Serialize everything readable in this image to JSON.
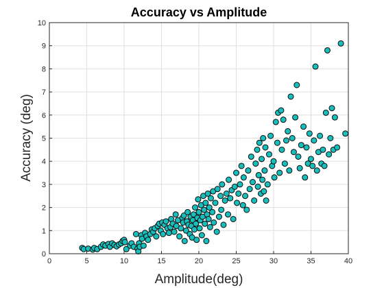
{
  "chart_data": {
    "type": "scatter",
    "title": "Accuracy vs Amplitude",
    "xlabel": "Amplitude(deg)",
    "ylabel": "Accuracy (deg)",
    "xlim": [
      0,
      40
    ],
    "ylim": [
      0,
      10
    ],
    "xticks": [
      "0",
      "5",
      "10",
      "15",
      "20",
      "25",
      "30",
      "35",
      "40"
    ],
    "yticks": [
      "0",
      "1",
      "2",
      "3",
      "4",
      "5",
      "6",
      "7",
      "8",
      "9",
      "10"
    ],
    "grid": true,
    "marker_color": "#17bebb",
    "marker_edge": "#0a0a0a",
    "points": [
      [
        4.4,
        0.25
      ],
      [
        4.6,
        0.2
      ],
      [
        5.2,
        0.22
      ],
      [
        5.8,
        0.18
      ],
      [
        6.0,
        0.25
      ],
      [
        6.4,
        0.2
      ],
      [
        6.9,
        0.3
      ],
      [
        7.2,
        0.4
      ],
      [
        7.5,
        0.35
      ],
      [
        7.9,
        0.42
      ],
      [
        8.1,
        0.3
      ],
      [
        8.4,
        0.45
      ],
      [
        8.7,
        0.38
      ],
      [
        9.0,
        0.32
      ],
      [
        9.3,
        0.4
      ],
      [
        9.6,
        0.45
      ],
      [
        9.8,
        0.55
      ],
      [
        10.0,
        0.6
      ],
      [
        10.1,
        0.5
      ],
      [
        10.3,
        0.2
      ],
      [
        10.8,
        0.35
      ],
      [
        11.0,
        0.45
      ],
      [
        11.3,
        0.3
      ],
      [
        11.6,
        0.85
      ],
      [
        11.8,
        0.22
      ],
      [
        11.9,
        0.1
      ],
      [
        12.0,
        0.45
      ],
      [
        12.1,
        0.3
      ],
      [
        12.3,
        0.8
      ],
      [
        12.4,
        0.65
      ],
      [
        12.6,
        0.35
      ],
      [
        12.8,
        0.9
      ],
      [
        13.0,
        0.75
      ],
      [
        13.2,
        0.6
      ],
      [
        13.5,
        0.85
      ],
      [
        13.7,
        1.05
      ],
      [
        13.9,
        0.95
      ],
      [
        14.1,
        1.1
      ],
      [
        14.3,
        0.75
      ],
      [
        14.5,
        1.2
      ],
      [
        14.7,
        1.3
      ],
      [
        14.9,
        1.0
      ],
      [
        15.1,
        1.35
      ],
      [
        15.2,
        0.85
      ],
      [
        15.4,
        1.25
      ],
      [
        15.6,
        1.4
      ],
      [
        15.8,
        1.1
      ],
      [
        16.0,
        0.9
      ],
      [
        16.2,
        1.15
      ],
      [
        16.3,
        1.5
      ],
      [
        16.5,
        1.3
      ],
      [
        16.7,
        0.95
      ],
      [
        16.9,
        1.7
      ],
      [
        17.0,
        1.2
      ],
      [
        17.2,
        1.45
      ],
      [
        17.4,
        0.75
      ],
      [
        17.6,
        1.1
      ],
      [
        17.8,
        1.55
      ],
      [
        17.9,
        1.35
      ],
      [
        18.0,
        1.65
      ],
      [
        18.1,
        0.55
      ],
      [
        18.3,
        1.0
      ],
      [
        18.4,
        1.4
      ],
      [
        18.5,
        1.8
      ],
      [
        18.6,
        1.25
      ],
      [
        18.8,
        0.85
      ],
      [
        18.9,
        1.6
      ],
      [
        19.0,
        1.2
      ],
      [
        19.1,
        0.7
      ],
      [
        19.2,
        1.45
      ],
      [
        19.3,
        1.7
      ],
      [
        19.4,
        1.05
      ],
      [
        19.5,
        2.0
      ],
      [
        19.6,
        1.3
      ],
      [
        19.7,
        0.6
      ],
      [
        19.8,
        1.55
      ],
      [
        19.9,
        2.35
      ],
      [
        20.0,
        1.8
      ],
      [
        20.1,
        1.1
      ],
      [
        20.2,
        1.45
      ],
      [
        20.3,
        2.1
      ],
      [
        20.4,
        0.8
      ],
      [
        20.5,
        1.6
      ],
      [
        20.6,
        2.5
      ],
      [
        20.7,
        1.9
      ],
      [
        20.8,
        1.3
      ],
      [
        20.9,
        2.2
      ],
      [
        21.0,
        0.55
      ],
      [
        21.1,
        1.7
      ],
      [
        21.2,
        2.6
      ],
      [
        21.3,
        1.5
      ],
      [
        21.4,
        2.0
      ],
      [
        21.5,
        1.15
      ],
      [
        21.6,
        2.4
      ],
      [
        21.8,
        1.8
      ],
      [
        21.9,
        2.7
      ],
      [
        22.0,
        1.35
      ],
      [
        22.2,
        2.2
      ],
      [
        22.4,
        0.95
      ],
      [
        22.5,
        2.8
      ],
      [
        22.7,
        1.6
      ],
      [
        22.9,
        2.5
      ],
      [
        23.0,
        1.9
      ],
      [
        23.1,
        3.0
      ],
      [
        23.3,
        1.25
      ],
      [
        23.5,
        2.3
      ],
      [
        23.7,
        2.6
      ],
      [
        23.9,
        1.7
      ],
      [
        24.0,
        3.2
      ],
      [
        24.2,
        2.4
      ],
      [
        24.4,
        2.75
      ],
      [
        24.6,
        1.5
      ],
      [
        24.8,
        2.9
      ],
      [
        25.0,
        3.5
      ],
      [
        25.1,
        2.2
      ],
      [
        25.3,
        2.6
      ],
      [
        25.5,
        3.0
      ],
      [
        25.7,
        3.8
      ],
      [
        25.9,
        2.1
      ],
      [
        26.0,
        3.3
      ],
      [
        26.2,
        2.5
      ],
      [
        26.4,
        1.9
      ],
      [
        26.6,
        3.6
      ],
      [
        26.8,
        2.8
      ],
      [
        27.0,
        4.2
      ],
      [
        27.2,
        3.1
      ],
      [
        27.4,
        2.3
      ],
      [
        27.6,
        3.9
      ],
      [
        27.8,
        4.5
      ],
      [
        27.9,
        2.9
      ],
      [
        28.0,
        3.4
      ],
      [
        28.1,
        4.8
      ],
      [
        28.3,
        2.6
      ],
      [
        28.4,
        4.1
      ],
      [
        28.5,
        3.2
      ],
      [
        28.6,
        5.0
      ],
      [
        28.7,
        2.7
      ],
      [
        28.8,
        3.6
      ],
      [
        28.9,
        4.6
      ],
      [
        29.0,
        2.3
      ],
      [
        29.2,
        3.0
      ],
      [
        29.4,
        4.3
      ],
      [
        29.6,
        5.1
      ],
      [
        29.8,
        3.8
      ],
      [
        30.0,
        4.0
      ],
      [
        30.1,
        3.3
      ],
      [
        30.3,
        5.7
      ],
      [
        30.5,
        4.8
      ],
      [
        30.6,
        6.1
      ],
      [
        30.8,
        3.5
      ],
      [
        31.0,
        6.2
      ],
      [
        31.1,
        4.5
      ],
      [
        31.3,
        5.8
      ],
      [
        31.5,
        3.9
      ],
      [
        31.7,
        4.9
      ],
      [
        31.9,
        5.3
      ],
      [
        32.1,
        3.6
      ],
      [
        32.3,
        6.8
      ],
      [
        32.5,
        5.0
      ],
      [
        32.7,
        4.4
      ],
      [
        32.9,
        5.9
      ],
      [
        33.1,
        7.3
      ],
      [
        33.3,
        4.2
      ],
      [
        33.5,
        3.7
      ],
      [
        33.7,
        4.7
      ],
      [
        34.0,
        5.5
      ],
      [
        34.2,
        3.3
      ],
      [
        34.4,
        4.6
      ],
      [
        34.6,
        3.9
      ],
      [
        34.8,
        5.2
      ],
      [
        35.0,
        4.1
      ],
      [
        35.2,
        3.8
      ],
      [
        35.4,
        4.9
      ],
      [
        35.6,
        8.1
      ],
      [
        35.8,
        3.6
      ],
      [
        36.0,
        4.4
      ],
      [
        36.2,
        5.1
      ],
      [
        36.4,
        3.9
      ],
      [
        36.6,
        4.5
      ],
      [
        36.8,
        3.8
      ],
      [
        37.0,
        6.1
      ],
      [
        37.2,
        8.8
      ],
      [
        37.4,
        4.3
      ],
      [
        37.6,
        5.0
      ],
      [
        37.8,
        6.3
      ],
      [
        38.0,
        4.5
      ],
      [
        38.2,
        5.9
      ],
      [
        38.5,
        4.6
      ],
      [
        39.0,
        9.1
      ],
      [
        39.6,
        5.2
      ]
    ]
  }
}
